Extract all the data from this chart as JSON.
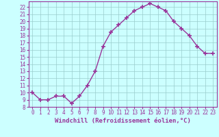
{
  "x": [
    0,
    1,
    2,
    3,
    4,
    5,
    6,
    7,
    8,
    9,
    10,
    11,
    12,
    13,
    14,
    15,
    16,
    17,
    18,
    19,
    20,
    21,
    22,
    23
  ],
  "y": [
    10,
    9,
    9,
    9.5,
    9.5,
    8.5,
    9.5,
    11,
    13,
    16.5,
    18.5,
    19.5,
    20.5,
    21.5,
    22,
    22.5,
    22,
    21.5,
    20,
    19,
    18,
    16.5,
    15.5,
    15.5
  ],
  "line_color": "#993399",
  "marker": "+",
  "bg_color": "#ccffff",
  "grid_color": "#99cccc",
  "xlabel": "Windchill (Refroidissement éolien,°C)",
  "xlabel_color": "#993399",
  "tick_color": "#993399",
  "spine_color": "#993399",
  "ylim": [
    8,
    22.8
  ],
  "xlim": [
    -0.5,
    23.5
  ],
  "yticks": [
    8,
    9,
    10,
    11,
    12,
    13,
    14,
    15,
    16,
    17,
    18,
    19,
    20,
    21,
    22
  ],
  "xticks": [
    0,
    1,
    2,
    3,
    4,
    5,
    6,
    7,
    8,
    9,
    10,
    11,
    12,
    13,
    14,
    15,
    16,
    17,
    18,
    19,
    20,
    21,
    22,
    23
  ],
  "tick_fontsize": 5.5,
  "xlabel_fontsize": 6.5
}
